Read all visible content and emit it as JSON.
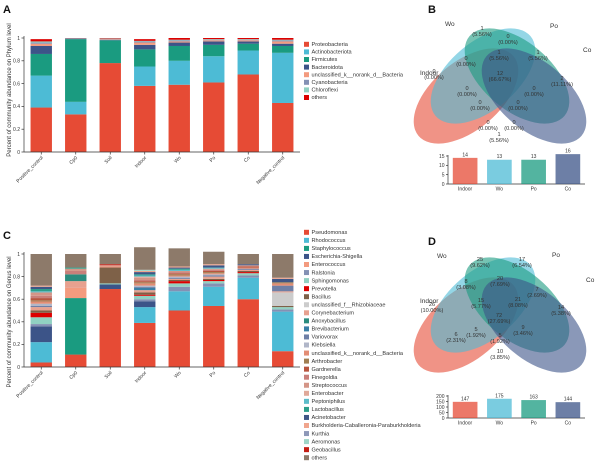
{
  "panels": {
    "a": "A",
    "b": "B",
    "c": "C",
    "d": "D"
  },
  "chart_data": [
    {
      "type": "bar",
      "stacked": true,
      "panel": "A",
      "ylabel": "Percent of community abundance on Phylum level",
      "ylim": [
        0,
        1
      ],
      "yticks": [
        "0",
        "0.2",
        "0.4",
        "0.6",
        "0.8",
        "1"
      ],
      "categories": [
        "Positive_control",
        "Cp0",
        "Soil",
        "Indoor",
        "Wo",
        "Po",
        "Co",
        "Negative_control"
      ],
      "series": [
        {
          "name": "Proteobacteria",
          "color": "#e64b35",
          "values": [
            0.39,
            0.33,
            0.78,
            0.58,
            0.59,
            0.61,
            0.68,
            0.43
          ]
        },
        {
          "name": "Actinobacteriota",
          "color": "#4dbbd5",
          "values": [
            0.28,
            0.11,
            0.0,
            0.17,
            0.21,
            0.23,
            0.21,
            0.44
          ]
        },
        {
          "name": "Firmicutes",
          "color": "#1a9b80",
          "values": [
            0.19,
            0.55,
            0.2,
            0.15,
            0.13,
            0.1,
            0.06,
            0.06
          ]
        },
        {
          "name": "Bacteroidota",
          "color": "#3c5488",
          "values": [
            0.07,
            0.005,
            0.005,
            0.04,
            0.03,
            0.03,
            0.02,
            0.02
          ]
        },
        {
          "name": "unclassified_k__norank_d__Bacteria",
          "color": "#f39b7f",
          "values": [
            0.02,
            0.002,
            0.005,
            0.02,
            0.01,
            0.01,
            0.01,
            0.02
          ]
        },
        {
          "name": "Cyanobacteria",
          "color": "#8491b4",
          "values": [
            0.01,
            0.001,
            0.003,
            0.01,
            0.01,
            0.005,
            0.005,
            0.01
          ]
        },
        {
          "name": "Chloroflexi",
          "color": "#91d1c2",
          "values": [
            0.01,
            0.001,
            0.003,
            0.005,
            0.005,
            0.005,
            0.005,
            0.005
          ]
        },
        {
          "name": "others",
          "color": "#dc0000",
          "values": [
            0.02,
            0.001,
            0.004,
            0.015,
            0.015,
            0.01,
            0.01,
            0.015
          ]
        }
      ]
    },
    {
      "type": "venn",
      "panel": "B",
      "sets": [
        "Indoor",
        "Wo",
        "Po",
        "Co"
      ],
      "regions": [
        {
          "count": "1",
          "pct": "(5.56%)"
        },
        {
          "count": "0",
          "pct": "(0.00%)"
        },
        {
          "count": "0",
          "pct": "(0.00%)"
        },
        {
          "count": "1",
          "pct": "(5.56%)"
        },
        {
          "count": "1",
          "pct": "(5.56%)"
        },
        {
          "count": "0",
          "pct": "(0.00%)"
        },
        {
          "count": "2",
          "pct": "(11.11%)"
        },
        {
          "count": "0",
          "pct": "(0.00%)"
        },
        {
          "count": "12",
          "pct": "(66.67%)"
        },
        {
          "count": "0",
          "pct": "(0.00%)"
        },
        {
          "count": "0",
          "pct": "(0.00%)"
        },
        {
          "count": "0",
          "pct": "(0.00%)"
        },
        {
          "count": "0",
          "pct": "(0.00%)"
        },
        {
          "count": "0",
          "pct": "(0.00%)"
        },
        {
          "count": "1",
          "pct": "(5.56%)"
        }
      ],
      "totals": {
        "categories": [
          "Indoor",
          "Wo",
          "Po",
          "Co"
        ],
        "values": [
          14,
          13,
          13,
          16
        ],
        "yticks": [
          "0",
          "5",
          "10",
          "15"
        ]
      }
    },
    {
      "type": "bar",
      "stacked": true,
      "panel": "C",
      "ylabel": "Percent of community abundance on Genus level",
      "ylim": [
        0,
        1
      ],
      "yticks": [
        "0",
        "0.2",
        "0.4",
        "0.6",
        "0.8",
        "1"
      ],
      "categories": [
        "Positive_control",
        "Cp0",
        "Soil",
        "Indoor",
        "Wo",
        "Po",
        "Co",
        "Negative_control"
      ],
      "series": [
        {
          "name": "Pseudomonas",
          "color": "#e64b35",
          "values": [
            0.04,
            0.11,
            0.69,
            0.39,
            0.5,
            0.54,
            0.6,
            0.14
          ]
        },
        {
          "name": "Rhodococcus",
          "color": "#4dbbd5",
          "values": [
            0.18,
            0.0,
            0.0,
            0.14,
            0.17,
            0.17,
            0.19,
            0.35
          ]
        },
        {
          "name": "Staphylococcus",
          "color": "#1a9b80",
          "values": [
            0.0,
            0.5,
            0.0,
            0.0,
            0.0,
            0.0,
            0.0,
            0.0
          ]
        },
        {
          "name": "Escherichia-Shigella",
          "color": "#3c5488",
          "values": [
            0.14,
            0.0,
            0.04,
            0.05,
            0.0,
            0.0,
            0.0,
            0.0
          ]
        },
        {
          "name": "Enterococcus",
          "color": "#f39b7f",
          "values": [
            0.0,
            0.09,
            0.0,
            0.0,
            0.0,
            0.0,
            0.0,
            0.0
          ]
        },
        {
          "name": "Ralstonia",
          "color": "#8491b4",
          "values": [
            0.02,
            0.0,
            0.0,
            0.02,
            0.04,
            0.03,
            0.02,
            0.02
          ]
        },
        {
          "name": "Sphingomonas",
          "color": "#91d1c2",
          "values": [
            0.06,
            0.0,
            0.01,
            0.03,
            0.03,
            0.02,
            0.02,
            0.02
          ]
        },
        {
          "name": "Prevotella",
          "color": "#dc0000",
          "values": [
            0.04,
            0.0,
            0.0,
            0.01,
            0.02,
            0.01,
            0.01,
            0.0
          ]
        },
        {
          "name": "Bacillus",
          "color": "#7e6148",
          "values": [
            0.02,
            0.0,
            0.14,
            0.02,
            0.01,
            0.01,
            0.01,
            0.01
          ]
        },
        {
          "name": "unclassified_f__Rhizobiaceae",
          "color": "#cccccc",
          "values": [
            0.0,
            0.0,
            0.0,
            0.0,
            0.0,
            0.0,
            0.0,
            0.12
          ]
        },
        {
          "name": "Corynebacterium",
          "color": "#e7a18f",
          "values": [
            0.03,
            0.06,
            0.0,
            0.02,
            0.01,
            0.02,
            0.01,
            0.01
          ]
        },
        {
          "name": "Anoxybacillus",
          "color": "#2a8c7e",
          "values": [
            0.0,
            0.06,
            0.0,
            0.0,
            0.0,
            0.0,
            0.0,
            0.0
          ]
        },
        {
          "name": "Brevibacterium",
          "color": "#3a7fa6",
          "values": [
            0.0,
            0.0,
            0.0,
            0.02,
            0.0,
            0.0,
            0.0,
            0.0
          ]
        },
        {
          "name": "Variovorax",
          "color": "#6e7fa6",
          "values": [
            0.01,
            0.0,
            0.0,
            0.01,
            0.01,
            0.01,
            0.01,
            0.05
          ]
        },
        {
          "name": "Klebsiella",
          "color": "#b0b6c8",
          "values": [
            0.02,
            0.0,
            0.0,
            0.01,
            0.01,
            0.01,
            0.0,
            0.0
          ]
        },
        {
          "name": "unclassified_k__norank_d__Bacteria",
          "color": "#e38d74",
          "values": [
            0.02,
            0.0,
            0.01,
            0.02,
            0.01,
            0.01,
            0.01,
            0.02
          ]
        },
        {
          "name": "Arthrobacter",
          "color": "#a07f52",
          "values": [
            0.01,
            0.0,
            0.0,
            0.01,
            0.01,
            0.01,
            0.0,
            0.01
          ]
        },
        {
          "name": "Gardnerella",
          "color": "#b8553f",
          "values": [
            0.02,
            0.0,
            0.0,
            0.01,
            0.01,
            0.01,
            0.01,
            0.0
          ]
        },
        {
          "name": "Finegoldia",
          "color": "#c97f7a",
          "values": [
            0.02,
            0.03,
            0.0,
            0.01,
            0.01,
            0.01,
            0.0,
            0.0
          ]
        },
        {
          "name": "Streptococcus",
          "color": "#d49587",
          "values": [
            0.03,
            0.02,
            0.0,
            0.02,
            0.01,
            0.01,
            0.01,
            0.0
          ]
        },
        {
          "name": "Enterobacter",
          "color": "#e0a99a",
          "values": [
            0.0,
            0.0,
            0.01,
            0.01,
            0.0,
            0.0,
            0.0,
            0.0
          ]
        },
        {
          "name": "Peptoniphilus",
          "color": "#5cbcc9",
          "values": [
            0.01,
            0.0,
            0.0,
            0.01,
            0.01,
            0.01,
            0.0,
            0.0
          ]
        },
        {
          "name": "Lactobacillus",
          "color": "#2c9e8a",
          "values": [
            0.02,
            0.01,
            0.0,
            0.01,
            0.01,
            0.0,
            0.0,
            0.0
          ]
        },
        {
          "name": "Acinetobacter",
          "color": "#3f5686",
          "values": [
            0.02,
            0.0,
            0.0,
            0.02,
            0.01,
            0.02,
            0.01,
            0.03
          ]
        },
        {
          "name": "Burkholderia-Caballeronia-Paraburkholderia",
          "color": "#f0a58d",
          "values": [
            0.01,
            0.0,
            0.0,
            0.01,
            0.01,
            0.01,
            0.0,
            0.01
          ]
        },
        {
          "name": "Kurthia",
          "color": "#8e98b8",
          "values": [
            0.0,
            0.0,
            0.0,
            0.0,
            0.0,
            0.0,
            0.0,
            0.0
          ]
        },
        {
          "name": "Aeromonas",
          "color": "#9fd6c8",
          "values": [
            0.0,
            0.0,
            0.0,
            0.01,
            0.0,
            0.0,
            0.0,
            0.0
          ]
        },
        {
          "name": "Geobacillus",
          "color": "#c41e14",
          "values": [
            0.0,
            0.0,
            0.01,
            0.0,
            0.0,
            0.0,
            0.0,
            0.0
          ]
        },
        {
          "name": "others",
          "color": "#8d7a6a",
          "values": [
            0.28,
            0.12,
            0.09,
            0.2,
            0.16,
            0.11,
            0.09,
            0.21
          ]
        }
      ]
    },
    {
      "type": "venn",
      "panel": "D",
      "sets": [
        "Indoor",
        "Wo",
        "Po",
        "Co"
      ],
      "regions": [
        {
          "count": "25",
          "pct": "(9.62%)"
        },
        {
          "count": "17",
          "pct": "(6.54%)"
        },
        {
          "count": "8",
          "pct": "(3.08%)"
        },
        {
          "count": "20",
          "pct": "(7.69%)"
        },
        {
          "count": "7",
          "pct": "(2.69%)"
        },
        {
          "count": "26",
          "pct": "(10.00%)"
        },
        {
          "count": "15",
          "pct": "(5.77%)"
        },
        {
          "count": "21",
          "pct": "(8.08%)"
        },
        {
          "count": "14",
          "pct": "(5.38%)"
        },
        {
          "count": "72",
          "pct": "(27.69%)"
        },
        {
          "count": "5",
          "pct": "(1.92%)"
        },
        {
          "count": "9",
          "pct": "(3.46%)"
        },
        {
          "count": "6",
          "pct": "(2.31%)"
        },
        {
          "count": "5",
          "pct": "(1.92%)"
        },
        {
          "count": "10",
          "pct": "(3.85%)"
        }
      ],
      "totals": {
        "categories": [
          "Indoor",
          "Wo",
          "Po",
          "Co"
        ],
        "values": [
          147,
          175,
          163,
          144
        ],
        "yticks": [
          "0",
          "50",
          "100",
          "150",
          "200"
        ]
      }
    }
  ]
}
